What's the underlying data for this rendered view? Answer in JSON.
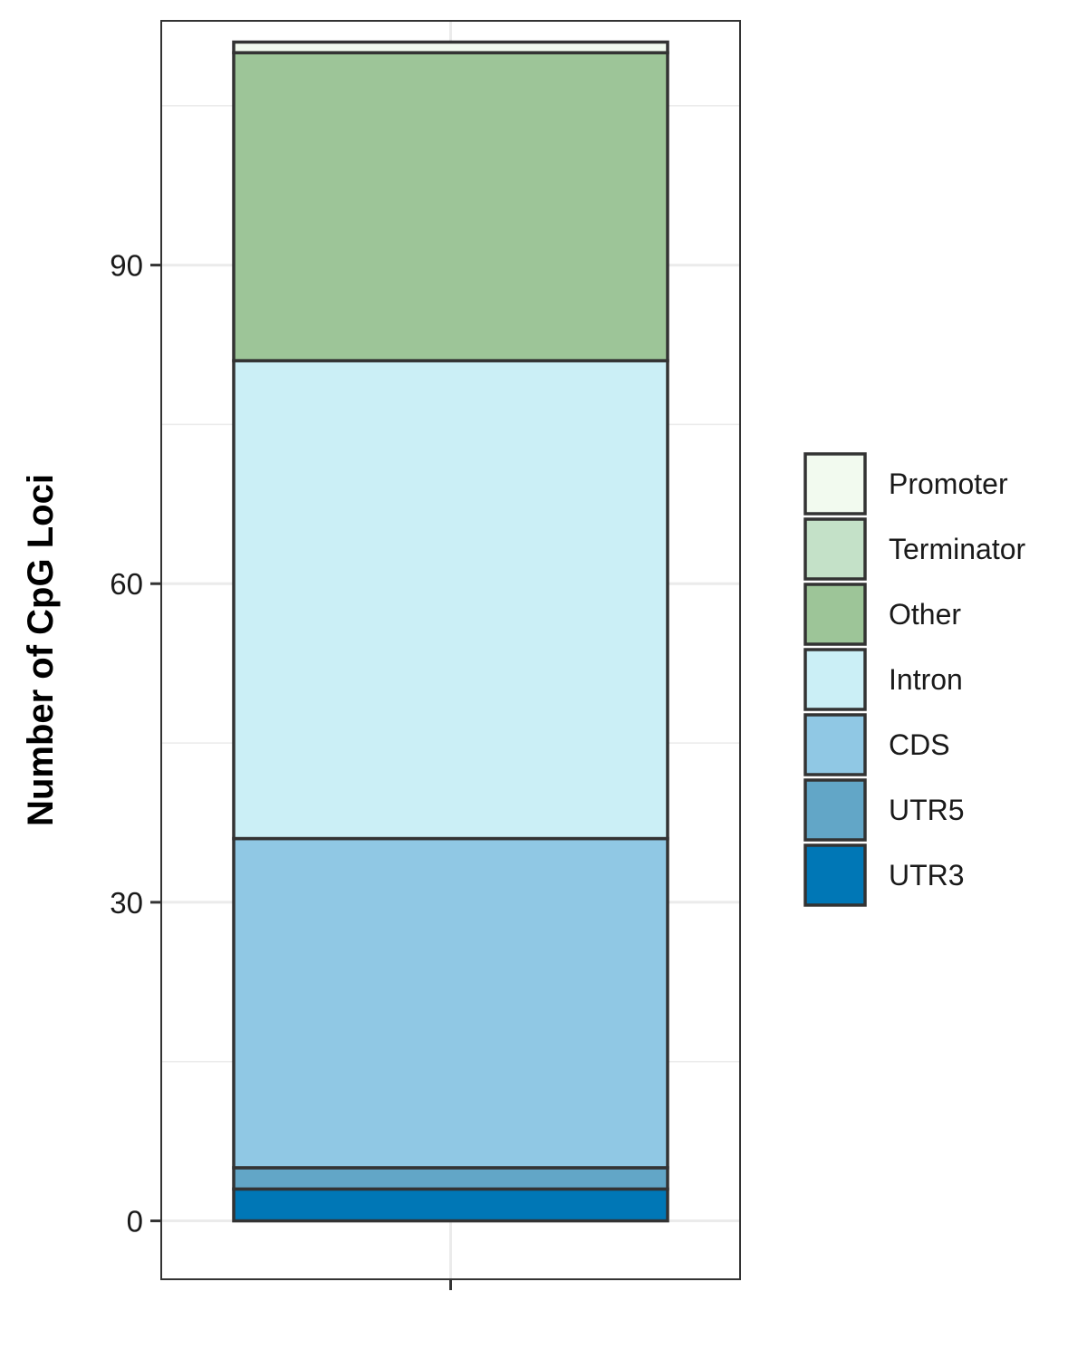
{
  "chart_data": {
    "type": "bar",
    "stacked": true,
    "categories": [
      ""
    ],
    "ylabel": "Number of CpG Loci",
    "xlabel": "",
    "ylim": [
      -5.5,
      113
    ],
    "yticks": [
      0,
      30,
      60,
      90
    ],
    "grid": true,
    "legend_position": "right",
    "series": [
      {
        "name": "UTR3",
        "values": [
          3
        ],
        "color": "#0077b6"
      },
      {
        "name": "UTR5",
        "values": [
          2
        ],
        "color": "#62a6c7"
      },
      {
        "name": "CDS",
        "values": [
          31
        ],
        "color": "#90c8e4"
      },
      {
        "name": "Intron",
        "values": [
          45
        ],
        "color": "#cbeff6"
      },
      {
        "name": "Other",
        "values": [
          29
        ],
        "color": "#9dc598"
      },
      {
        "name": "Terminator",
        "values": [
          0
        ],
        "color": "#c4e1c8"
      },
      {
        "name": "Promoter",
        "values": [
          1
        ],
        "color": "#f2faef"
      }
    ],
    "legend_order": [
      "Promoter",
      "Terminator",
      "Other",
      "Intron",
      "CDS",
      "UTR5",
      "UTR3"
    ]
  }
}
